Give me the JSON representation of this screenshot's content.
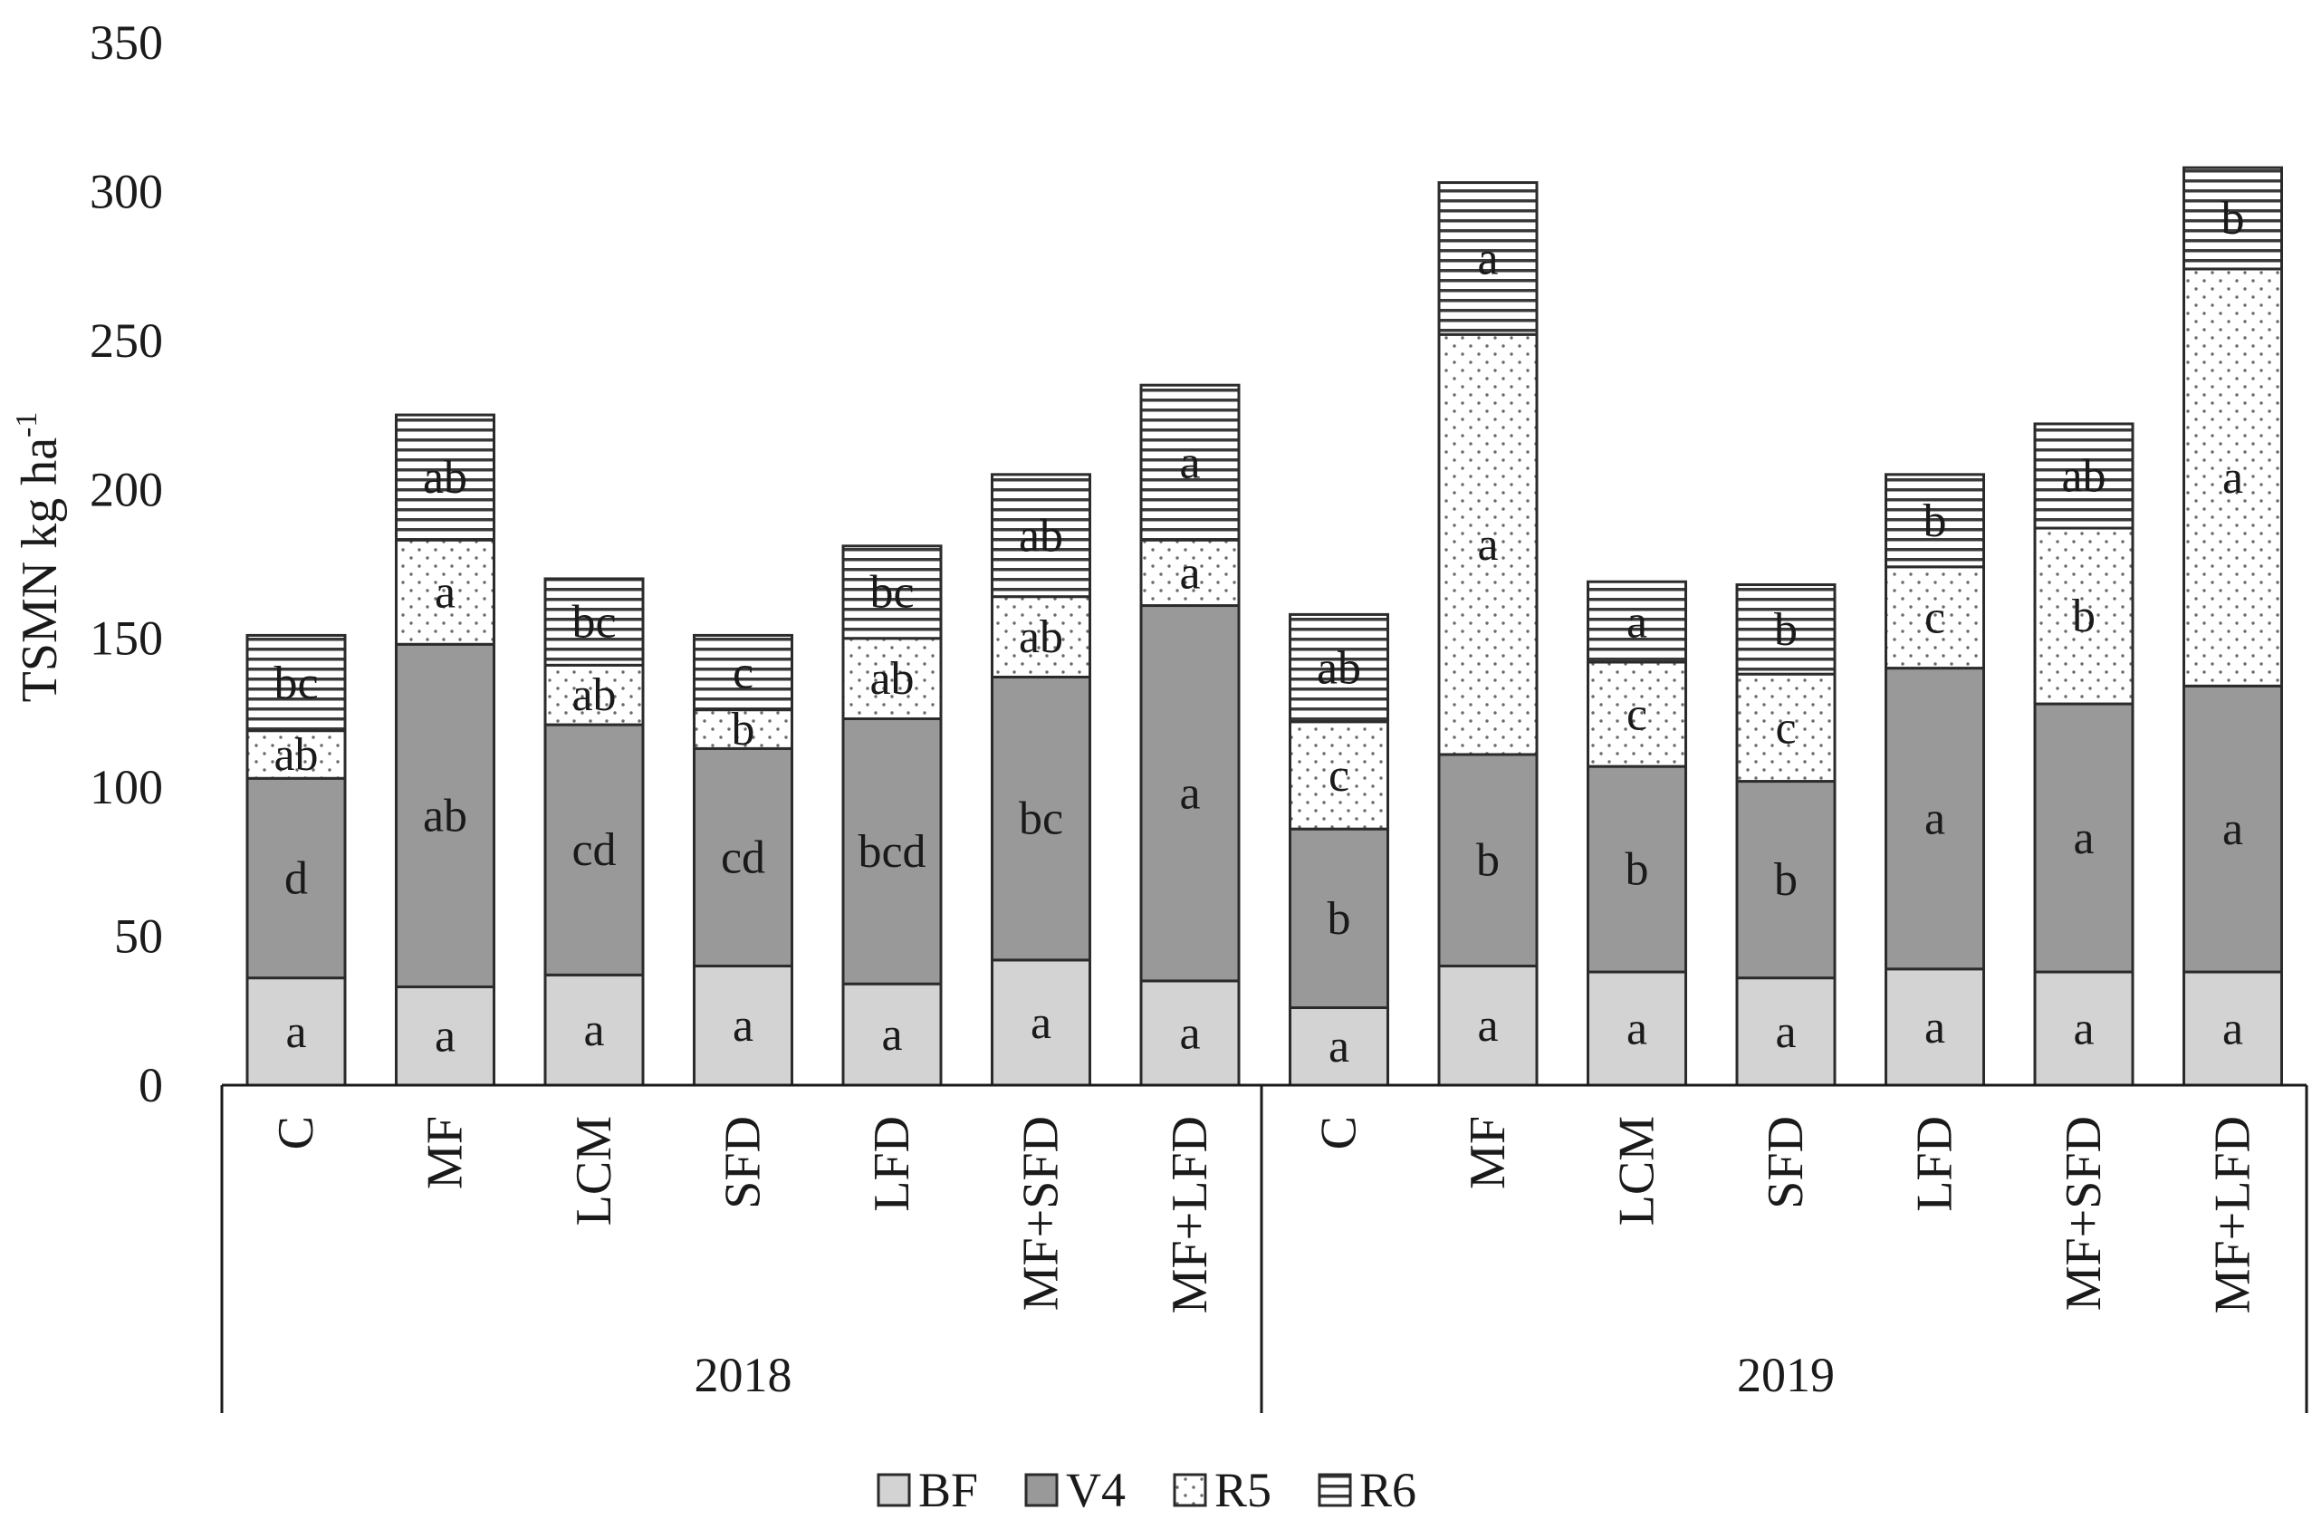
{
  "chart_data": {
    "type": "bar",
    "stacked": true,
    "title": "",
    "xlabel": "",
    "ylabel": "TSMN kg ha",
    "ylabel_superscript": "-1",
    "ylim": [
      0,
      350
    ],
    "yticks": [
      0,
      50,
      100,
      150,
      200,
      250,
      300,
      350
    ],
    "grid": false,
    "legend_position": "bottom",
    "groups": [
      {
        "label": "2018",
        "categories": [
          "C",
          "MF",
          "LCM",
          "SFD",
          "LFD",
          "MF+SFD",
          "MF+LFD"
        ]
      },
      {
        "label": "2019",
        "categories": [
          "C",
          "MF",
          "LCM",
          "SFD",
          "LFD",
          "MF+SFD",
          "MF+LFD"
        ]
      }
    ],
    "series": [
      {
        "name": "BF",
        "pattern": "solid-light",
        "color": "#d3d3d3",
        "values": [
          36,
          33,
          37,
          40,
          34,
          42,
          35,
          26,
          40,
          38,
          36,
          39,
          38,
          38
        ],
        "letters": [
          "a",
          "a",
          "a",
          "a",
          "a",
          "a",
          "a",
          "a",
          "a",
          "a",
          "a",
          "a",
          "a",
          "a"
        ]
      },
      {
        "name": "V4",
        "pattern": "solid-dark",
        "color": "#999999",
        "values": [
          67,
          115,
          84,
          73,
          89,
          95,
          126,
          60,
          71,
          69,
          66,
          101,
          90,
          96
        ],
        "letters": [
          "d",
          "ab",
          "cd",
          "cd",
          "bcd",
          "bc",
          "a",
          "b",
          "b",
          "b",
          "b",
          "a",
          "a",
          "a"
        ]
      },
      {
        "name": "R5",
        "pattern": "dots",
        "color": "#ffffff",
        "values": [
          16,
          35,
          20,
          13,
          27,
          27,
          22,
          36,
          141,
          35,
          36,
          34,
          59,
          140
        ],
        "letters": [
          "ab",
          "a",
          "ab",
          "b",
          "ab",
          "ab",
          "a",
          "c",
          "a",
          "c",
          "c",
          "c",
          "b",
          "a"
        ]
      },
      {
        "name": "R6",
        "pattern": "horizontal-lines",
        "color": "#ffffff",
        "values": [
          32,
          42,
          29,
          25,
          31,
          41,
          52,
          36,
          51,
          27,
          30,
          31,
          35,
          34
        ],
        "letters": [
          "bc",
          "ab",
          "bc",
          "c",
          "bc",
          "ab",
          "a",
          "ab",
          "a",
          "a",
          "b",
          "b",
          "ab",
          "b"
        ]
      }
    ]
  }
}
